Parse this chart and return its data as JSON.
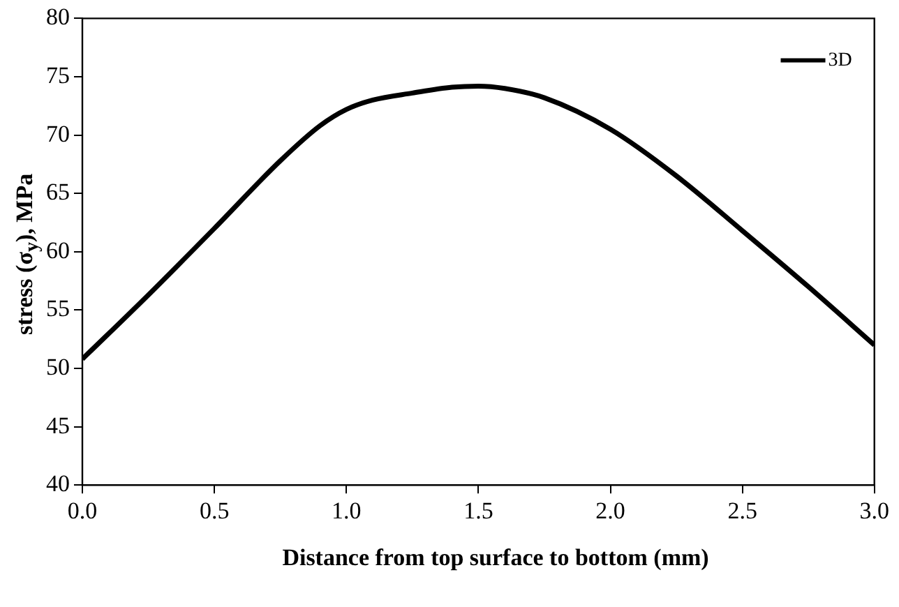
{
  "chart_data": {
    "type": "line",
    "xlabel": "Distance from top surface to bottom (mm)",
    "ylabel": "stress (σ$_{y}$), MPa",
    "x": [
      0,
      0.25,
      0.5,
      0.75,
      0.9,
      1.0,
      1.1,
      1.25,
      1.4,
      1.5,
      1.6,
      1.75,
      2.0,
      2.25,
      2.5,
      2.75,
      3.0
    ],
    "series": [
      {
        "name": "3D",
        "color": "#000000",
        "values": [
          50.8,
          56.3,
          62,
          67.8,
          70.8,
          72.2,
          73,
          73.6,
          74.1,
          74.2,
          74.0,
          73.2,
          70.5,
          66.5,
          61.8,
          57,
          52
        ]
      }
    ],
    "xlim": [
      0,
      3
    ],
    "xticks": [
      {
        "value": 0,
        "label": "0.0"
      },
      {
        "value": 0.5,
        "label": "0.5"
      },
      {
        "value": 1,
        "label": "1.0"
      },
      {
        "value": 1.5,
        "label": "1.5"
      },
      {
        "value": 2,
        "label": "2.0"
      },
      {
        "value": 2.5,
        "label": "2.5"
      },
      {
        "value": 3,
        "label": "3.0"
      }
    ],
    "ylim": [
      40,
      80
    ],
    "yticks": [
      40,
      45,
      50,
      55,
      60,
      65,
      70,
      75,
      80
    ],
    "grid": false,
    "legend": "top right",
    "marker": "none",
    "line_style": "solid"
  }
}
